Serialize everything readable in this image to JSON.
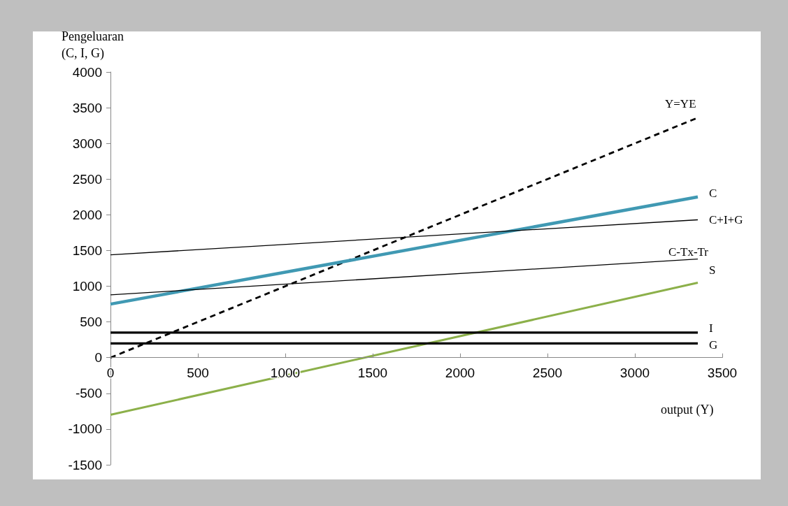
{
  "chart_data": {
    "type": "line",
    "xlabel": "output (Y)",
    "ylabel": "Pengeluaran\n(C, I, G)",
    "xlim": [
      0,
      3500
    ],
    "xticks": [
      0,
      500,
      1000,
      1500,
      2000,
      2500,
      3000,
      3500
    ],
    "ylim": [
      -1500,
      4000
    ],
    "yticks": [
      -1500,
      -1000,
      -500,
      0,
      500,
      1000,
      1500,
      2000,
      2500,
      3000,
      3500,
      4000
    ],
    "grid": false,
    "legend": false,
    "marker": "none",
    "x": [
      0,
      3360
    ],
    "series": [
      {
        "name": "Y=YE",
        "color": "#000000",
        "line_style": "dashed",
        "values": [
          0,
          3360
        ]
      },
      {
        "name": "C",
        "color": "#4099b3",
        "line_style": "solid",
        "values": [
          750,
          2250
        ]
      },
      {
        "name": "C+I+G",
        "color": "#000000",
        "line_style": "solid",
        "values": [
          1440,
          1930
        ]
      },
      {
        "name": "C-Tx-Tr",
        "color": "#000000",
        "line_style": "solid",
        "values": [
          880,
          1380
        ]
      },
      {
        "name": "S",
        "color": "#8cb04a",
        "line_style": "solid",
        "values": [
          -800,
          1050
        ]
      },
      {
        "name": "I",
        "color": "#000000",
        "line_style": "solid",
        "values": [
          350,
          350
        ]
      },
      {
        "name": "G",
        "color": "#000000",
        "line_style": "solid",
        "values": [
          200,
          200
        ]
      }
    ]
  }
}
